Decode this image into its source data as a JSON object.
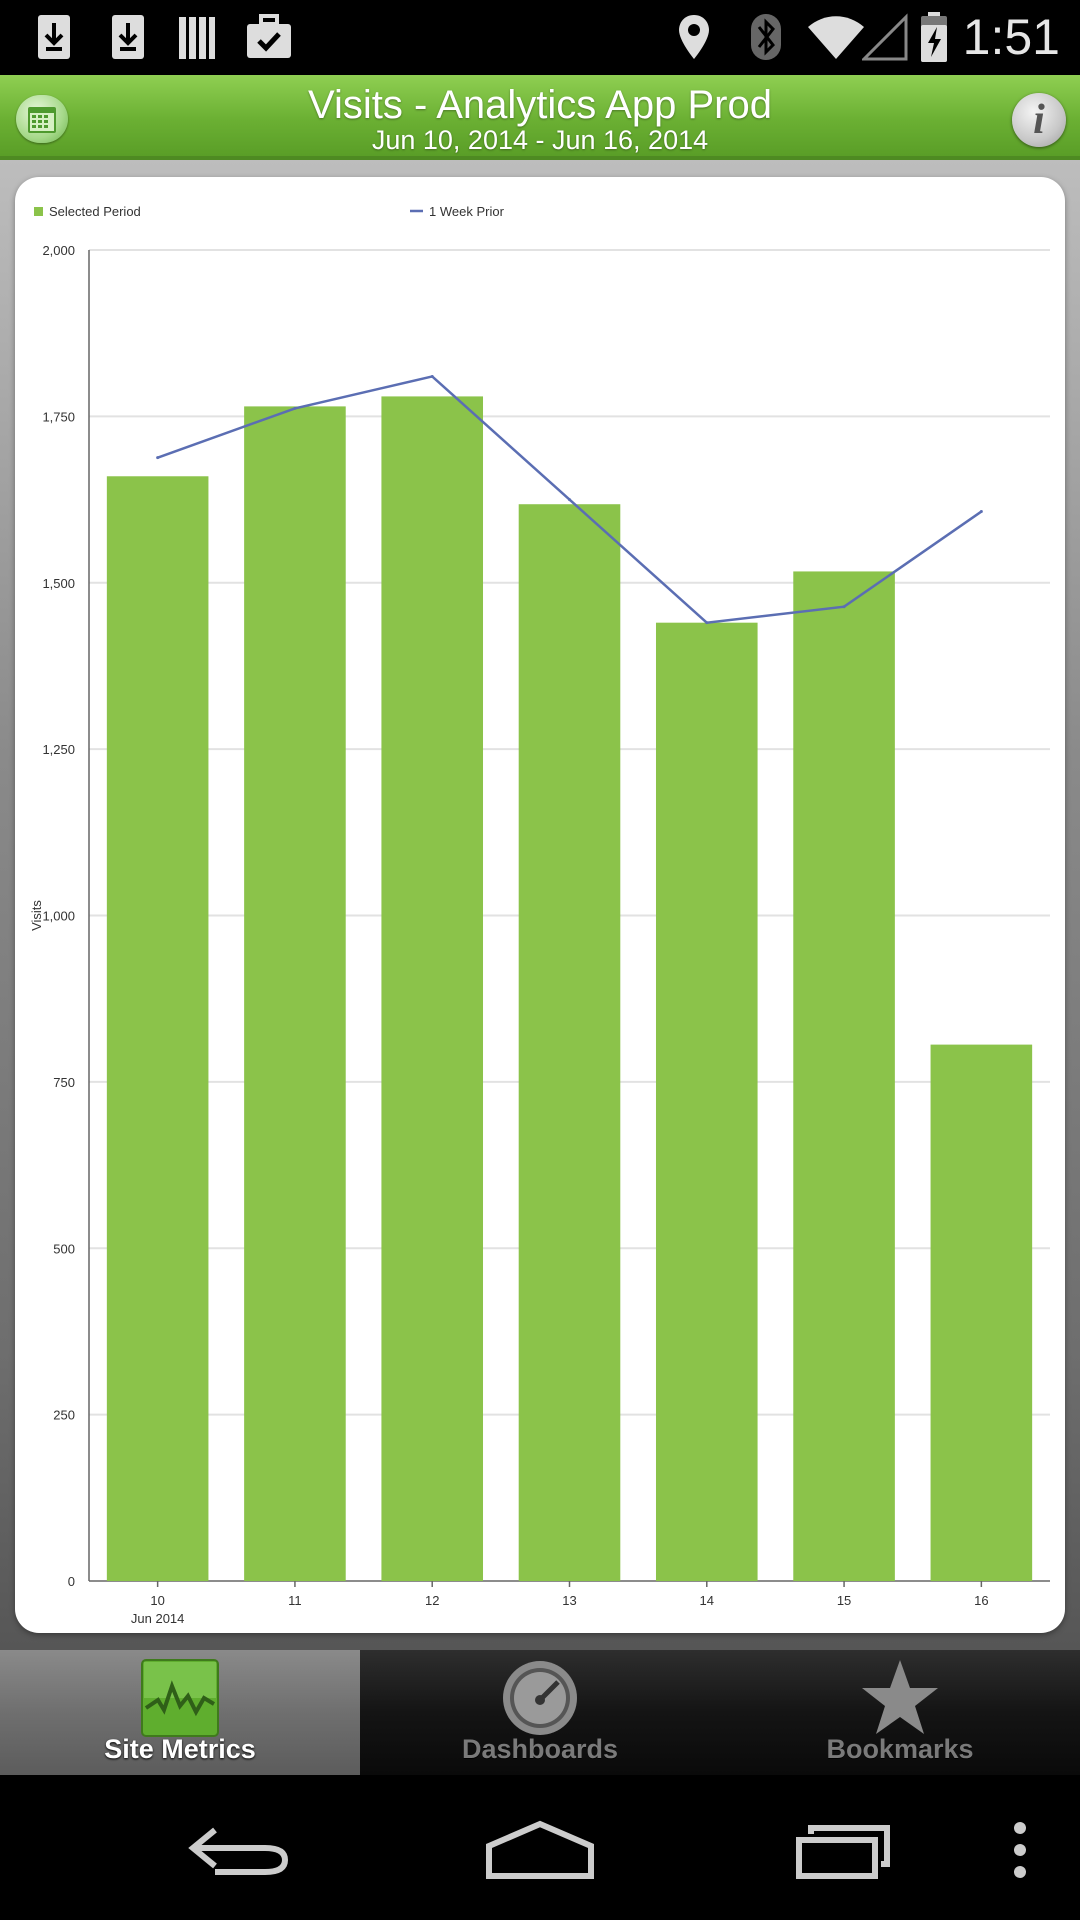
{
  "status_bar": {
    "time": "1:51",
    "left_icons": [
      "download-icon",
      "download-icon",
      "library-icon",
      "briefcase-check-icon"
    ],
    "right_icons": [
      "location-icon",
      "bluetooth-icon",
      "wifi-icon",
      "signal-icon",
      "battery-charging-icon"
    ]
  },
  "header": {
    "title": "Visits - Analytics App Prod",
    "subtitle": "Jun 10, 2014  -  Jun 16, 2014",
    "left_button_icon": "calendar-icon",
    "right_button_icon": "info-icon",
    "right_button_glyph": "i"
  },
  "chart_data": {
    "type": "bar",
    "ylabel": "Visits",
    "xlabel": "",
    "categories": [
      "10",
      "11",
      "12",
      "13",
      "14",
      "15",
      "16"
    ],
    "x_sublabel": "Jun 2014",
    "ylim": [
      0,
      2000
    ],
    "yticks": [
      0,
      250,
      500,
      750,
      1000,
      1250,
      1500,
      1750,
      2000
    ],
    "ytick_labels": [
      "0",
      "250",
      "500",
      "750",
      "1,000",
      "1,250",
      "1,500",
      "1,750",
      "2,000"
    ],
    "grid": true,
    "legend_position": "top-left",
    "series": [
      {
        "name": "Selected Period",
        "kind": "bar",
        "color": "#8bc34a",
        "values": [
          1660,
          1765,
          1780,
          1618,
          1440,
          1517,
          806
        ]
      },
      {
        "name": "1 Week Prior",
        "kind": "line",
        "color": "#5b6eb3",
        "values": [
          1688,
          1762,
          1810,
          1625,
          1440,
          1464,
          1607
        ]
      }
    ]
  },
  "tabs": [
    {
      "label": "Site Metrics",
      "icon": "site-metrics-icon",
      "active": true
    },
    {
      "label": "Dashboards",
      "icon": "dashboard-gauge-icon",
      "active": false
    },
    {
      "label": "Bookmarks",
      "icon": "star-icon",
      "active": false
    }
  ],
  "nav_bar": {
    "icons": [
      "back-icon",
      "home-icon",
      "recent-apps-icon",
      "menu-icon"
    ]
  },
  "colors": {
    "header_green": "#6bb033",
    "bar_green": "#8bc34a",
    "line_blue": "#5b6eb3"
  }
}
